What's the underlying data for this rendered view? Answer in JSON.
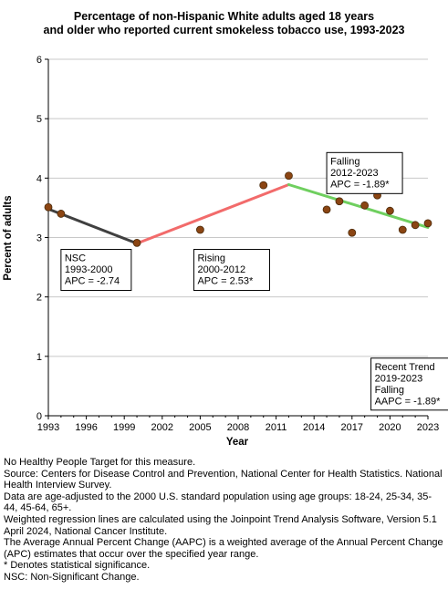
{
  "chart_data": {
    "type": "line",
    "title": [
      "Percentage of non-Hispanic White adults aged 18 years",
      "and older who reported current smokeless tobacco use, 1993-2023"
    ],
    "xlabel": "Year",
    "ylabel": "Percent of adults",
    "xlim": [
      1993,
      2023
    ],
    "ylim": [
      0,
      6
    ],
    "x_ticks": [
      1993,
      1996,
      1999,
      2002,
      2005,
      2008,
      2011,
      2014,
      2017,
      2020,
      2023
    ],
    "y_ticks": [
      0,
      1,
      2,
      3,
      4,
      5,
      6
    ],
    "grid": "horizontal",
    "colors": {
      "points": "#8B4513",
      "point_stroke": "#4a2a0a",
      "trend_nsc": "#404040",
      "trend_rising": "#f26b6b",
      "trend_falling": "#6fcf5f",
      "grid": "#c8c8c8"
    },
    "points": {
      "x": [
        1993,
        1994,
        2000,
        2005,
        2010,
        2012,
        2015,
        2016,
        2017,
        2018,
        2019,
        2020,
        2021,
        2022,
        2023
      ],
      "y": [
        3.51,
        3.4,
        2.91,
        3.13,
        3.88,
        4.04,
        3.47,
        3.61,
        3.08,
        3.54,
        3.71,
        3.45,
        3.13,
        3.21,
        3.24
      ]
    },
    "trend_segments": [
      {
        "x": [
          1993,
          2000
        ],
        "y": [
          3.48,
          2.9
        ],
        "color_key": "trend_nsc"
      },
      {
        "x": [
          2000,
          2012
        ],
        "y": [
          2.9,
          3.89
        ],
        "color_key": "trend_rising"
      },
      {
        "x": [
          2012,
          2023
        ],
        "y": [
          3.89,
          3.17
        ],
        "color_key": "trend_falling"
      }
    ],
    "annotations": [
      {
        "x": 1994.0,
        "y": 2.8,
        "lines": [
          "NSC",
          "1993-2000",
          "APC = -2.74"
        ]
      },
      {
        "x": 2004.5,
        "y": 2.8,
        "lines": [
          "Rising",
          "2000-2012",
          "APC =  2.53*"
        ]
      },
      {
        "x": 2015.0,
        "y": 4.43,
        "lines": [
          "Falling",
          "2012-2023",
          "APC = -1.89*"
        ]
      },
      {
        "x": 2018.5,
        "y": 0.97,
        "lines": [
          "Recent Trend",
          "2019-2023",
          "Falling",
          "AAPC = -1.89*"
        ]
      }
    ]
  },
  "footnotes": [
    "No Healthy People Target for this measure.",
    "Source: Centers for Disease Control and Prevention, National Center for Health Statistics. National Health Interview Survey.",
    "Data are age-adjusted to the 2000 U.S. standard population using age groups: 18-24, 25-34, 35-44, 45-64, 65+.",
    "Weighted regression lines are calculated using the Joinpoint Trend Analysis Software, Version 5.1 April 2024, National Cancer Institute.",
    "The Average Annual Percent Change (AAPC) is a weighted average of the Annual Percent Change (APC) estimates that occur over the specified year range.",
    "* Denotes statistical significance.",
    "NSC: Non-Significant Change."
  ]
}
